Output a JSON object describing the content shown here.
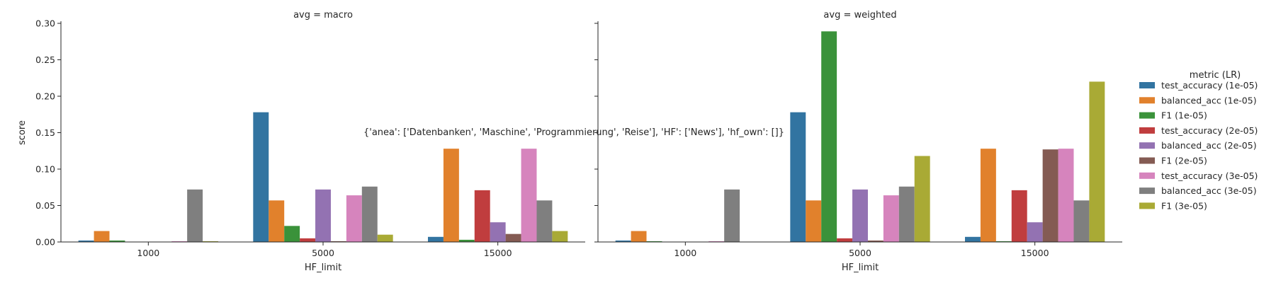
{
  "figure": {
    "overlay_text": "{'anea': ['Datenbanken', 'Maschine', 'Programmierung', 'Reise'], 'HF': ['News'], 'hf_own': []}"
  },
  "legend": {
    "title": "metric (LR)",
    "entries": [
      {
        "label": "test_accuracy (1e-05)",
        "color": "#3274a1"
      },
      {
        "label": "balanced_acc (1e-05)",
        "color": "#e1812c"
      },
      {
        "label": "F1 (1e-05)",
        "color": "#3a923a"
      },
      {
        "label": "test_accuracy (2e-05)",
        "color": "#c03d3e"
      },
      {
        "label": "balanced_acc (2e-05)",
        "color": "#9372b2"
      },
      {
        "label": "F1 (2e-05)",
        "color": "#845b53"
      },
      {
        "label": "test_accuracy (3e-05)",
        "color": "#d684bd"
      },
      {
        "label": "balanced_acc (3e-05)",
        "color": "#7f7f7f"
      },
      {
        "label": "F1 (3e-05)",
        "color": "#a9aa35"
      }
    ]
  },
  "chart_data": [
    {
      "type": "bar",
      "title": "avg = macro",
      "xlabel": "HF_limit",
      "ylabel": "score",
      "ylim": [
        0,
        0.3
      ],
      "yticks": [
        "0.00",
        "0.05",
        "0.10",
        "0.15",
        "0.20",
        "0.25",
        "0.30"
      ],
      "categories": [
        "1000",
        "5000",
        "15000"
      ],
      "series": [
        {
          "name": "test_accuracy (1e-05)",
          "values": [
            0.002,
            0.178,
            0.007
          ]
        },
        {
          "name": "balanced_acc (1e-05)",
          "values": [
            0.015,
            0.057,
            0.128
          ]
        },
        {
          "name": "F1 (1e-05)",
          "values": [
            0.002,
            0.022,
            0.003
          ]
        },
        {
          "name": "test_accuracy (2e-05)",
          "values": [
            0.0,
            0.005,
            0.071
          ]
        },
        {
          "name": "balanced_acc (2e-05)",
          "values": [
            0.0,
            0.072,
            0.027
          ]
        },
        {
          "name": "F1 (2e-05)",
          "values": [
            0.0,
            0.001,
            0.011
          ]
        },
        {
          "name": "test_accuracy (3e-05)",
          "values": [
            0.001,
            0.064,
            0.128
          ]
        },
        {
          "name": "balanced_acc (3e-05)",
          "values": [
            0.072,
            0.076,
            0.057
          ]
        },
        {
          "name": "F1 (3e-05)",
          "values": [
            0.001,
            0.01,
            0.015
          ]
        }
      ]
    },
    {
      "type": "bar",
      "title": "avg = weighted",
      "xlabel": "HF_limit",
      "ylabel": "",
      "ylim": [
        0,
        0.3
      ],
      "categories": [
        "1000",
        "5000",
        "15000"
      ],
      "series": [
        {
          "name": "test_accuracy (1e-05)",
          "values": [
            0.002,
            0.178,
            0.007
          ]
        },
        {
          "name": "balanced_acc (1e-05)",
          "values": [
            0.015,
            0.057,
            0.128
          ]
        },
        {
          "name": "F1 (1e-05)",
          "values": [
            0.001,
            0.289,
            0.001
          ]
        },
        {
          "name": "test_accuracy (2e-05)",
          "values": [
            0.0,
            0.005,
            0.071
          ]
        },
        {
          "name": "balanced_acc (2e-05)",
          "values": [
            0.0,
            0.072,
            0.027
          ]
        },
        {
          "name": "F1 (2e-05)",
          "values": [
            0.0,
            0.002,
            0.127
          ]
        },
        {
          "name": "test_accuracy (3e-05)",
          "values": [
            0.001,
            0.064,
            0.128
          ]
        },
        {
          "name": "balanced_acc (3e-05)",
          "values": [
            0.072,
            0.076,
            0.057
          ]
        },
        {
          "name": "F1 (3e-05)",
          "values": [
            0.0,
            0.118,
            0.22
          ]
        }
      ]
    }
  ]
}
